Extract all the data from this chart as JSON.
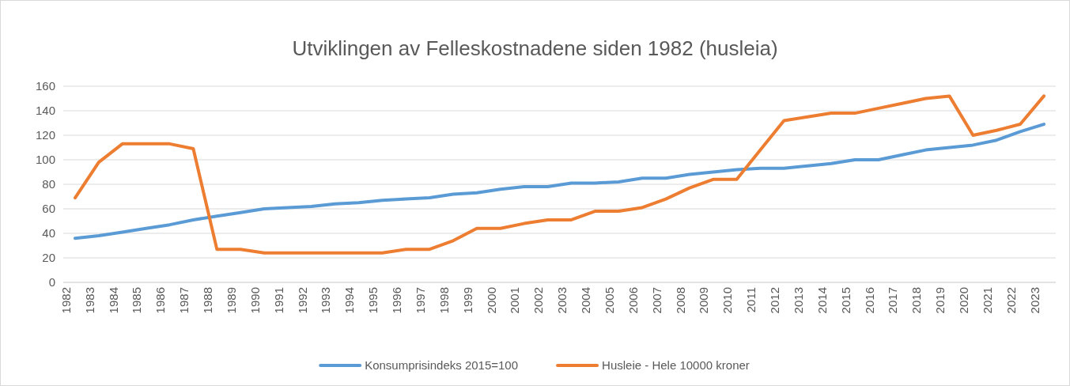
{
  "chart_data": {
    "type": "line",
    "title": "Utviklingen av Felleskostnadene siden 1982 (husleia)",
    "categories": [
      "1982",
      "1983",
      "1984",
      "1985",
      "1986",
      "1987",
      "1988",
      "1989",
      "1990",
      "1991",
      "1992",
      "1993",
      "1994",
      "1995",
      "1996",
      "1997",
      "1998",
      "1999",
      "2000",
      "2001",
      "2002",
      "2003",
      "2004",
      "2005",
      "2006",
      "2007",
      "2008",
      "2009",
      "2010",
      "2011",
      "2012",
      "2013",
      "2014",
      "2015",
      "2016",
      "2017",
      "2018",
      "2019",
      "2020",
      "2021",
      "2022",
      "2023"
    ],
    "series": [
      {
        "name": "Konsumprisindeks 2015=100",
        "color": "#5b9bd5",
        "values": [
          36,
          38,
          41,
          44,
          47,
          51,
          54,
          57,
          60,
          61,
          62,
          64,
          65,
          67,
          68,
          69,
          72,
          73,
          76,
          78,
          78,
          81,
          81,
          82,
          85,
          85,
          88,
          90,
          92,
          93,
          93,
          95,
          97,
          100,
          100,
          104,
          108,
          110,
          112,
          116,
          123,
          129
        ]
      },
      {
        "name": "Husleie - Hele 10000 kroner",
        "color": "#ed7d31",
        "values": [
          69,
          98,
          113,
          113,
          113,
          109,
          27,
          27,
          24,
          24,
          24,
          24,
          24,
          24,
          27,
          27,
          34,
          44,
          44,
          48,
          51,
          51,
          58,
          58,
          61,
          68,
          77,
          84,
          84,
          108,
          132,
          135,
          138,
          138,
          142,
          146,
          150,
          152,
          120,
          124,
          129,
          152
        ]
      }
    ],
    "ylim": [
      0,
      160
    ],
    "yticks": [
      0,
      20,
      40,
      60,
      80,
      100,
      120,
      140,
      160
    ],
    "grid": "y",
    "legend": "bottom",
    "marker": "none",
    "line_style": "solid"
  }
}
